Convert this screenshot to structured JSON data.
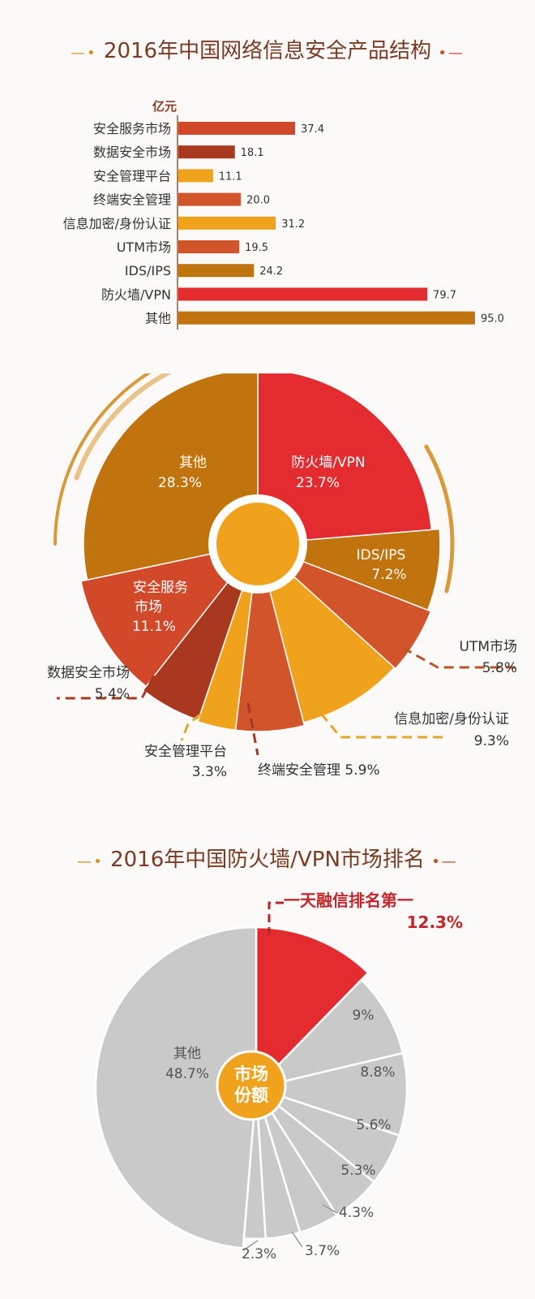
{
  "titles": {
    "chart1": "2016年中国网络信息安全产品结构",
    "chart3": "2016年中国防火墙/VPN市场排名"
  },
  "chart_data": [
    {
      "type": "bar",
      "orientation": "horizontal",
      "unit_label": "亿元",
      "categories": [
        "安全服务市场",
        "数据安全市场",
        "安全管理平台",
        "终端安全管理",
        "信息加密/身份认证",
        "UTM市场",
        "IDS/IPS",
        "防火墙/VPN",
        "其他"
      ],
      "values": [
        37.4,
        18.1,
        11.1,
        20.0,
        31.2,
        19.5,
        24.2,
        79.7,
        95.0
      ],
      "value_labels": [
        "37.4",
        "18.1",
        "11.1",
        "20.0",
        "31.2",
        "19.5",
        "24.2",
        "79.7",
        "95.0"
      ],
      "colors": [
        "#d2492a",
        "#a8391f",
        "#f0a21c",
        "#d2542b",
        "#f0a21c",
        "#d2542b",
        "#c1730e",
        "#e32b30",
        "#c1730e"
      ],
      "xlim": [
        0,
        95
      ]
    },
    {
      "type": "pie",
      "slices": [
        {
          "name": "防火墙/VPN",
          "percent_label": "23.7%",
          "value": 23.7,
          "color": "#e32b30"
        },
        {
          "name": "IDS/IPS",
          "percent_label": "7.2%",
          "value": 7.2,
          "color": "#c1730e"
        },
        {
          "name": "UTM市场",
          "percent_label": "5.8%",
          "value": 5.8,
          "color": "#d2542b"
        },
        {
          "name": "信息加密/身份认证",
          "percent_label": "9.3%",
          "value": 9.3,
          "color": "#f0a21c"
        },
        {
          "name": "终端安全管理",
          "percent_label": "5.9%",
          "value": 5.9,
          "color": "#d2542b"
        },
        {
          "name": "安全管理平台",
          "percent_label": "3.3%",
          "value": 3.3,
          "color": "#f0a21c"
        },
        {
          "name": "数据安全市场",
          "percent_label": "5.4%",
          "value": 5.4,
          "color": "#a8391f"
        },
        {
          "name": "安全服务市场",
          "name_lines": [
            "安全服务",
            "市场"
          ],
          "percent_label": "11.1%",
          "value": 11.1,
          "color": "#d2492a"
        },
        {
          "name": "其他",
          "percent_label": "28.3%",
          "value": 28.3,
          "color": "#c1730e"
        }
      ]
    },
    {
      "type": "pie",
      "center_label": [
        "市场",
        "份额"
      ],
      "slices": [
        {
          "name": "一天融信排名第一",
          "percent_label": "12.3%",
          "value": 12.3,
          "color": "#e32b30"
        },
        {
          "name": "",
          "percent_label": "9%",
          "value": 9,
          "color": "#c9c9c9"
        },
        {
          "name": "",
          "percent_label": "8.8%",
          "value": 8.8,
          "color": "#c9c9c9"
        },
        {
          "name": "",
          "percent_label": "5.6%",
          "value": 5.6,
          "color": "#c9c9c9"
        },
        {
          "name": "",
          "percent_label": "5.3%",
          "value": 5.3,
          "color": "#c9c9c9"
        },
        {
          "name": "",
          "percent_label": "4.3%",
          "value": 4.3,
          "color": "#c9c9c9"
        },
        {
          "name": "",
          "percent_label": "3.7%",
          "value": 3.7,
          "color": "#c9c9c9"
        },
        {
          "name": "",
          "percent_label": "2.3%",
          "value": 2.3,
          "color": "#c9c9c9"
        },
        {
          "name": "其他",
          "percent_label": "48.7%",
          "value": 48.7,
          "color": "#c9c9c9"
        }
      ]
    }
  ]
}
